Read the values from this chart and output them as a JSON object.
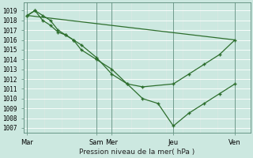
{
  "background_color": "#cce8e0",
  "plot_bg_color": "#cce8e0",
  "grid_color": "#b0d8d0",
  "line_color": "#2d6e2d",
  "marker_color": "#2d6e2d",
  "ylabel_ticks": [
    1007,
    1008,
    1009,
    1010,
    1011,
    1012,
    1013,
    1014,
    1015,
    1016,
    1017,
    1018,
    1019
  ],
  "ylim": [
    1006.5,
    1019.8
  ],
  "xlabel": "Pression niveau de la mer( hPa )",
  "xtick_labels": [
    "Mar",
    "Sam",
    "Mer",
    "Jeu",
    "Ven"
  ],
  "xtick_positions": [
    0,
    9,
    11,
    19,
    27
  ],
  "xlim": [
    -0.5,
    29
  ],
  "series": [
    {
      "x": [
        0,
        1,
        2,
        3,
        4,
        5,
        6,
        7,
        9,
        11,
        13,
        15,
        17,
        19,
        21,
        23,
        25,
        27
      ],
      "y": [
        1018.5,
        1019.0,
        1018.5,
        1018.0,
        1017.0,
        1016.5,
        1016.0,
        1015.0,
        1014.0,
        1013.0,
        1011.5,
        1010.0,
        1009.5,
        1007.2,
        1008.5,
        1009.5,
        1010.5,
        1011.5
      ],
      "marker": true
    },
    {
      "x": [
        0,
        1,
        2,
        3,
        4,
        5,
        6,
        7,
        9,
        11,
        13,
        15,
        19,
        21,
        23,
        25,
        27
      ],
      "y": [
        1018.5,
        1019.0,
        1018.0,
        1017.5,
        1016.8,
        1016.5,
        1016.0,
        1015.5,
        1014.2,
        1012.5,
        1011.5,
        1011.2,
        1011.5,
        1012.5,
        1013.5,
        1014.5,
        1016.0
      ],
      "marker": true
    },
    {
      "x": [
        0,
        27
      ],
      "y": [
        1018.5,
        1016.0
      ],
      "marker": false
    }
  ]
}
